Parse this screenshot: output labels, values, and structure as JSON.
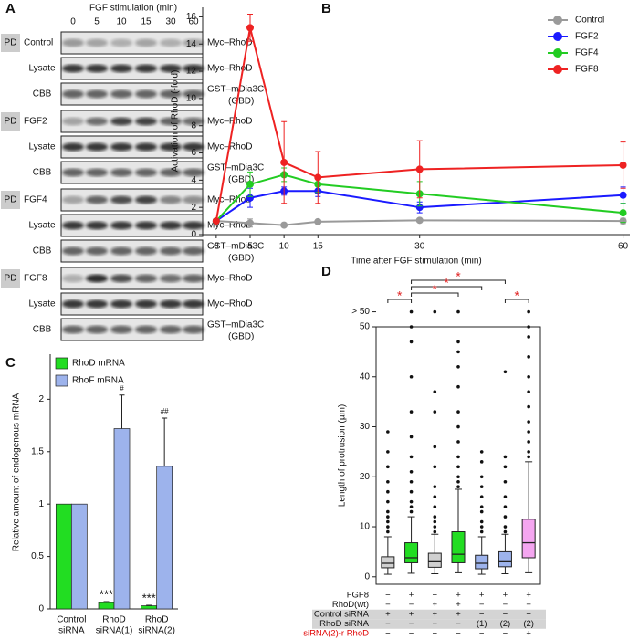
{
  "panel_labels": [
    "A",
    "B",
    "C",
    "D"
  ],
  "blot": {
    "header": "FGF stimulation (min)",
    "times": [
      "0",
      "5",
      "10",
      "15",
      "30",
      "60"
    ],
    "groups": [
      {
        "tag": "PD",
        "name": "Control",
        "target": "Myc–RhoD",
        "rows": [
          {
            "label": "Lysate",
            "target": "Myc–RhoD"
          },
          {
            "label": "CBB",
            "target": "GST–mDia3C",
            "note": "(GBD)"
          }
        ]
      },
      {
        "tag": "PD",
        "name": "FGF2",
        "target": "Myc–RhoD",
        "rows": [
          {
            "label": "Lysate",
            "target": "Myc–RhoD"
          },
          {
            "label": "CBB",
            "target": "GST–mDia3C",
            "note": "(GBD)"
          }
        ]
      },
      {
        "tag": "PD",
        "name": "FGF4",
        "target": "Myc–RhoD",
        "rows": [
          {
            "label": "Lysate",
            "target": "Myc–RhoD"
          },
          {
            "label": "CBB",
            "target": "GST–mDia3C",
            "note": "(GBD)"
          }
        ]
      },
      {
        "tag": "PD",
        "name": "FGF8",
        "target": "Myc–RhoD",
        "rows": [
          {
            "label": "Lysate",
            "target": "Myc–RhoD"
          },
          {
            "label": "CBB",
            "target": "GST–mDia3C",
            "note": "(GBD)"
          }
        ]
      }
    ]
  },
  "chart_data": [
    {
      "type": "line",
      "xlabel": "Time after FGF stimulation (min)",
      "ylabel": "Activation of RhoD (-fold)",
      "x": [
        0,
        5,
        10,
        15,
        30,
        60
      ],
      "xlim": [
        -2,
        61
      ],
      "ylim": [
        0,
        16.7
      ],
      "xticks": [
        0,
        5,
        10,
        15,
        30,
        60
      ],
      "yticks": [
        0,
        2,
        4,
        6,
        8,
        10,
        12,
        14,
        16
      ],
      "legend": "upper right",
      "series": [
        {
          "name": "Control",
          "color": "#9a9a9a",
          "values": [
            1,
            0.85,
            0.7,
            0.95,
            1.05,
            1.0
          ],
          "errors": [
            0,
            0.3,
            0.1,
            0.1,
            0.1,
            0.2
          ]
        },
        {
          "name": "FGF2",
          "color": "#1a1aff",
          "values": [
            1,
            2.7,
            3.2,
            3.2,
            2.0,
            2.9
          ],
          "errors": [
            0,
            0.7,
            0.3,
            0.4,
            0.4,
            0.6
          ]
        },
        {
          "name": "FGF4",
          "color": "#22cc22",
          "values": [
            1,
            3.7,
            4.4,
            3.7,
            3.0,
            1.6
          ],
          "errors": [
            0,
            0.9,
            0.5,
            0.6,
            0.9,
            0.7
          ]
        },
        {
          "name": "FGF8",
          "color": "#ee2222",
          "values": [
            1,
            15.2,
            5.3,
            4.2,
            4.8,
            5.1
          ],
          "errors": [
            0,
            1.0,
            3.0,
            1.9,
            2.1,
            1.7
          ]
        }
      ]
    },
    {
      "type": "bar",
      "ylabel": "Relative amount of endogenous mRNA",
      "categories": [
        [
          "Control",
          "siRNA"
        ],
        [
          "RhoD",
          "siRNA(1)"
        ],
        [
          "RhoD",
          "siRNA(2)"
        ]
      ],
      "ylim": [
        0,
        2.43
      ],
      "yticks": [
        0,
        0.5,
        1,
        1.5,
        2
      ],
      "legend": "upper left",
      "series": [
        {
          "name": "RhoD mRNA",
          "color": "#22dd22",
          "values": [
            1,
            0.06,
            0.03
          ],
          "errors": [
            0,
            0.01,
            0.005
          ],
          "annotations": [
            null,
            "***",
            "***"
          ]
        },
        {
          "name": "RhoF mRNA",
          "color": "#9db3ec",
          "values": [
            1,
            1.72,
            1.36
          ],
          "errors": [
            0,
            0.32,
            0.46
          ],
          "annotations": [
            null,
            "#",
            "##"
          ]
        }
      ]
    },
    {
      "type": "box",
      "ylabel": "Length of protrusion (µm)",
      "ylim": [
        -1.5,
        50
      ],
      "yticks": [
        0,
        10,
        20,
        30,
        40,
        50,
        {
          "value": 53,
          "label": "> 50"
        }
      ],
      "boxes": [
        {
          "color": "#d0d0d0",
          "whislo": 0.5,
          "q1": 1.8,
          "med": 2.7,
          "q3": 4,
          "whishi": 8,
          "fliers": [
            9,
            10,
            11,
            12,
            13,
            15,
            17,
            19,
            22,
            25,
            29
          ]
        },
        {
          "color": "#22dd22",
          "whislo": 0.7,
          "q1": 2.8,
          "med": 3.8,
          "q3": 6.8,
          "whishi": 12,
          "fliers": [
            13,
            14,
            15,
            17,
            19,
            21,
            24,
            28,
            33,
            40,
            47,
            50,
            53
          ]
        },
        {
          "color": "#d0d0d0",
          "whislo": 0.6,
          "q1": 1.9,
          "med": 3,
          "q3": 4.7,
          "whishi": 8.5,
          "fliers": [
            9,
            10,
            11,
            12,
            14,
            16,
            18,
            22,
            26,
            33,
            37,
            53
          ]
        },
        {
          "color": "#22dd22",
          "whislo": 0.8,
          "q1": 2.8,
          "med": 4.5,
          "q3": 9,
          "whishi": 17.5,
          "fliers": [
            18,
            19,
            20,
            22,
            24,
            27,
            30,
            33,
            38,
            42,
            45,
            47,
            53
          ]
        },
        {
          "color": "#9db3ec",
          "whislo": 0.5,
          "q1": 1.6,
          "med": 2.7,
          "q3": 4.3,
          "whishi": 8,
          "fliers": [
            9,
            10,
            11,
            13,
            14,
            16,
            18,
            20,
            23,
            25
          ]
        },
        {
          "color": "#9db3ec",
          "whislo": 0.6,
          "q1": 2,
          "med": 3,
          "q3": 5,
          "whishi": 8.5,
          "fliers": [
            9,
            10,
            12,
            14,
            16,
            19,
            22,
            24,
            41
          ]
        },
        {
          "color": "#f4a6f0",
          "whislo": 0.8,
          "q1": 3.8,
          "med": 6.8,
          "q3": 11.5,
          "whishi": 23,
          "fliers": [
            24,
            25,
            27,
            29,
            31,
            34,
            37,
            40,
            44,
            48,
            50,
            53
          ]
        }
      ],
      "comparisons": [
        {
          "label": "*",
          "groups": [
            0,
            1
          ]
        },
        {
          "label": "*",
          "groups": [
            1,
            5
          ]
        },
        {
          "label": "*",
          "groups": [
            1,
            4
          ]
        },
        {
          "label": "*",
          "groups": [
            1,
            3
          ]
        },
        {
          "label": "*",
          "groups": [
            5,
            6
          ]
        }
      ],
      "conditions": [
        {
          "name": "FGF8",
          "levels": [
            "−",
            "+",
            "−",
            "+",
            "+",
            "+",
            "+"
          ],
          "shaded": false
        },
        {
          "name": "RhoD(wt)",
          "levels": [
            "−",
            "−",
            "+",
            "+",
            "−",
            "−",
            "−"
          ],
          "shaded": false
        },
        {
          "name": "Control siRNA",
          "levels": [
            "+",
            "+",
            "+",
            "+",
            "−",
            "−",
            "−"
          ],
          "shaded": true
        },
        {
          "name": "RhoD siRNA",
          "levels": [
            "−",
            "−",
            "−",
            "−",
            "(1)",
            "(2)",
            "(2)"
          ],
          "shaded": true
        },
        {
          "name": "siRNA(2)-r RhoD",
          "levels": [
            "−",
            "−",
            "−",
            "−",
            "−",
            "−",
            "+"
          ],
          "shaded": false,
          "color": "#e00000"
        }
      ]
    }
  ]
}
